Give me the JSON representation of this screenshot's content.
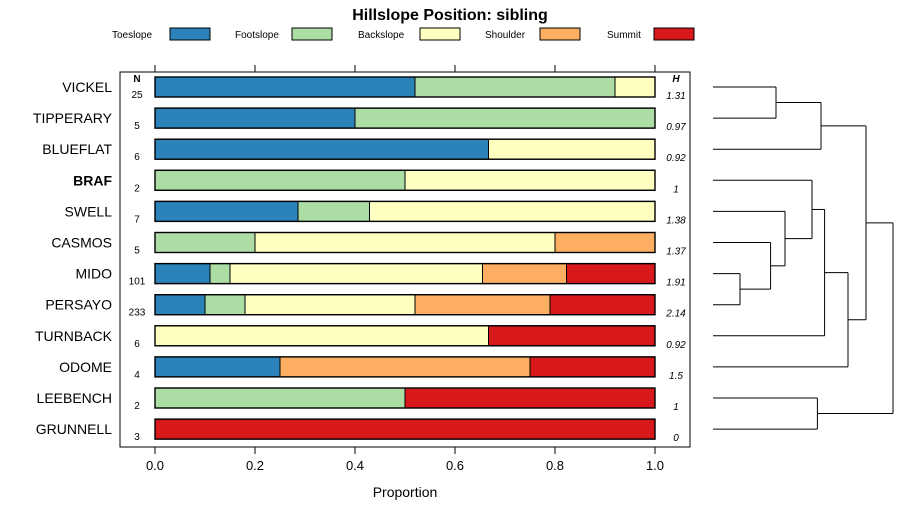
{
  "chart_data": {
    "type": "bar",
    "orientation": "horizontal",
    "stacked": true,
    "title": "Hillslope Position: sibling",
    "xlabel": "Proportion",
    "ylabel": "",
    "xlim": [
      0,
      1
    ],
    "x_ticks": [
      "0.0",
      "0.2",
      "0.4",
      "0.6",
      "0.8",
      "1.0"
    ],
    "n_header": "N",
    "h_header": "H",
    "legend_position": "top",
    "series": [
      {
        "name": "Toeslope",
        "color": "#2b83ba"
      },
      {
        "name": "Footslope",
        "color": "#abdda4"
      },
      {
        "name": "Backslope",
        "color": "#ffffbf"
      },
      {
        "name": "Shoulder",
        "color": "#fdae61"
      },
      {
        "name": "Summit",
        "color": "#d7191c"
      }
    ],
    "rows": [
      {
        "name": "VICKEL",
        "n": "25",
        "h": "1.31",
        "bold": false,
        "values": [
          0.52,
          0.4,
          0.08,
          0,
          0
        ]
      },
      {
        "name": "TIPPERARY",
        "n": "5",
        "h": "0.97",
        "bold": false,
        "values": [
          0.4,
          0.6,
          0,
          0,
          0
        ]
      },
      {
        "name": "BLUEFLAT",
        "n": "6",
        "h": "0.92",
        "bold": false,
        "values": [
          0.667,
          0,
          0.333,
          0,
          0
        ]
      },
      {
        "name": "BRAF",
        "n": "2",
        "h": "1",
        "bold": true,
        "values": [
          0,
          0.5,
          0.5,
          0,
          0
        ]
      },
      {
        "name": "SWELL",
        "n": "7",
        "h": "1.38",
        "bold": false,
        "values": [
          0.286,
          0.143,
          0.571,
          0,
          0
        ]
      },
      {
        "name": "CASMOS",
        "n": "5",
        "h": "1.37",
        "bold": false,
        "values": [
          0,
          0.2,
          0.6,
          0.2,
          0
        ]
      },
      {
        "name": "MIDO",
        "n": "101",
        "h": "1.91",
        "bold": false,
        "values": [
          0.11,
          0.04,
          0.505,
          0.168,
          0.177
        ]
      },
      {
        "name": "PERSAYO",
        "n": "233",
        "h": "2.14",
        "bold": false,
        "values": [
          0.1,
          0.08,
          0.34,
          0.27,
          0.21
        ]
      },
      {
        "name": "TURNBACK",
        "n": "6",
        "h": "0.92",
        "bold": false,
        "values": [
          0,
          0,
          0.667,
          0,
          0.333
        ]
      },
      {
        "name": "ODOME",
        "n": "4",
        "h": "1.5",
        "bold": false,
        "values": [
          0.25,
          0,
          0,
          0.5,
          0.25
        ]
      },
      {
        "name": "LEEBENCH",
        "n": "2",
        "h": "1",
        "bold": false,
        "values": [
          0,
          0.5,
          0,
          0,
          0.5
        ]
      },
      {
        "name": "GRUNNELL",
        "n": "3",
        "h": "0",
        "bold": false,
        "values": [
          0,
          0,
          0,
          0,
          1.0
        ]
      }
    ],
    "dendrogram": {
      "description": "hierarchical clustering of rows",
      "merges": [
        {
          "a": "VICKEL",
          "b": "TIPPERARY",
          "height": 0.35
        },
        {
          "a": "MIDO",
          "b": "PERSAYO",
          "height": 0.15
        },
        {
          "a": "m1",
          "b": "CASMOS",
          "height": 0.32
        },
        {
          "a": "m2",
          "b": "SWELL",
          "height": 0.4
        },
        {
          "a": "m3",
          "b": "BRAF",
          "height": 0.55
        },
        {
          "a": "LEEBENCH",
          "b": "GRUNNELL",
          "height": 0.58
        },
        {
          "a": "m0",
          "b": "BLUEFLAT",
          "height": 0.6
        },
        {
          "a": "m4",
          "b": "TURNBACK",
          "height": 0.62
        },
        {
          "a": "m7",
          "b": "ODOME",
          "height": 0.75
        },
        {
          "a": "m6",
          "b": "m8",
          "height": 0.85
        },
        {
          "a": "m9",
          "b": "m5",
          "height": 1.0
        }
      ]
    }
  }
}
